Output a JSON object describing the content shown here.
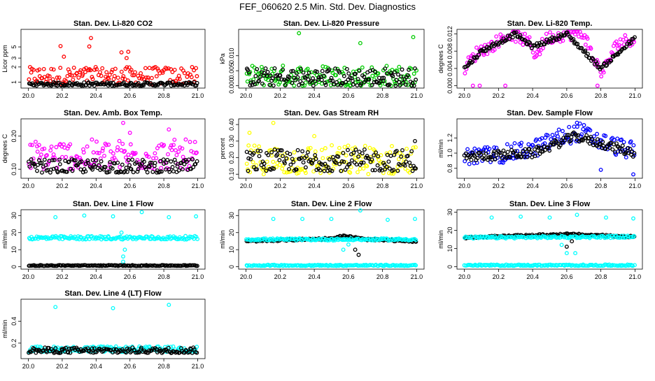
{
  "figure": {
    "title": "FEF_060620  2.5 Min. Std. Dev. Diagnostics"
  },
  "colors": {
    "black": "#000000",
    "red": "#ff0000",
    "green": "#00cc00",
    "magenta": "#ff00ff",
    "yellow": "#ffff00",
    "blue": "#0000ff",
    "cyan": "#00ffff"
  },
  "chart_data": [
    {
      "type": "scatter",
      "title": "Stan. Dev. Li-820 CO2",
      "ylabel": "Licor ppm",
      "xlim": [
        20.0,
        21.0
      ],
      "ylim": [
        0.85,
        10.0
      ],
      "log_y": true,
      "xticks": [
        "20.0",
        "20.2",
        "20.4",
        "20.6",
        "20.8",
        "21.0"
      ],
      "yticks": [
        "1",
        "2",
        "3",
        "5"
      ],
      "series": [
        {
          "color": "red",
          "band": [
            0.9,
            2.0
          ],
          "spikes": [
            [
              20.19,
              5.2
            ],
            [
              20.37,
              7.5
            ],
            [
              20.36,
              5.1
            ],
            [
              20.55,
              3.9
            ],
            [
              20.59,
              4.0
            ],
            [
              20.58,
              3.0
            ],
            [
              20.21,
              3.2
            ]
          ]
        },
        {
          "color": "black",
          "band": [
            0.85,
            1.0
          ],
          "spikes": []
        }
      ]
    },
    {
      "type": "scatter",
      "title": "Stan. Dev. Li-820 Pressure",
      "ylabel": "kPa",
      "xlim": [
        20.0,
        21.0
      ],
      "ylim": [
        0.0,
        0.018
      ],
      "xticks": [
        "20.0",
        "20.2",
        "20.4",
        "20.6",
        "20.8",
        "21.0"
      ],
      "yticks": [
        "0.000",
        "0.005",
        "0.010"
      ],
      "series": [
        {
          "color": "green",
          "band": [
            0.0,
            0.007
          ],
          "spikes": [
            [
              20.31,
              0.0175
            ],
            [
              20.67,
              0.0142
            ],
            [
              20.98,
              0.0162
            ]
          ]
        },
        {
          "color": "black",
          "band": [
            0.0,
            0.006
          ],
          "spikes": []
        }
      ]
    },
    {
      "type": "scatter",
      "title": "Stan. Dev. Li-820 Temp.",
      "ylabel": "degrees C",
      "xlim": [
        20.0,
        21.0
      ],
      "ylim": [
        0.0,
        0.0125
      ],
      "xticks": [
        "20.0",
        "20.2",
        "20.4",
        "20.6",
        "20.8",
        "21.0"
      ],
      "yticks": [
        "0.000",
        "0.004",
        "0.008",
        "0.012"
      ],
      "series": [
        {
          "color": "magenta",
          "curve": [
            [
              20.0,
              0.004
            ],
            [
              20.08,
              0.008
            ],
            [
              20.15,
              0.009
            ],
            [
              20.22,
              0.011
            ],
            [
              20.28,
              0.012
            ],
            [
              20.38,
              0.01
            ],
            [
              20.42,
              0.007
            ],
            [
              20.48,
              0.011
            ],
            [
              20.6,
              0.012
            ],
            [
              20.7,
              0.012
            ],
            [
              20.76,
              0.006
            ],
            [
              20.81,
              0.003
            ],
            [
              20.86,
              0.007
            ],
            [
              20.9,
              0.01
            ],
            [
              21.0,
              0.011
            ]
          ],
          "spread": 0.0015,
          "spikes": [
            [
              20.05,
              0.0
            ],
            [
              20.09,
              0.0
            ],
            [
              20.78,
              0.0
            ],
            [
              20.24,
              0.0
            ]
          ]
        },
        {
          "color": "black",
          "curve": [
            [
              20.0,
              0.004
            ],
            [
              20.1,
              0.008
            ],
            [
              20.3,
              0.012
            ],
            [
              20.4,
              0.009
            ],
            [
              20.6,
              0.012
            ],
            [
              20.8,
              0.004
            ],
            [
              21.0,
              0.011
            ]
          ],
          "spread": 0.0005,
          "spikes": []
        }
      ]
    },
    {
      "type": "scatter",
      "title": "Stan. Dev. Amb. Box Temp.",
      "ylabel": "degrees C",
      "xlim": [
        20.0,
        21.0
      ],
      "ylim": [
        0.08,
        0.245
      ],
      "xticks": [
        "20.0",
        "20.2",
        "20.4",
        "20.6",
        "20.8",
        "21.0"
      ],
      "yticks": [
        "0.10",
        "0.20"
      ],
      "series": [
        {
          "color": "magenta",
          "band": [
            0.1,
            0.19
          ],
          "spikes": [
            [
              20.56,
              0.24
            ],
            [
              20.83,
              0.22
            ],
            [
              20.6,
              0.21
            ]
          ]
        },
        {
          "color": "black",
          "band": [
            0.09,
            0.13
          ],
          "spikes": []
        }
      ]
    },
    {
      "type": "scatter",
      "title": "Stan. Dev. Gas Stream RH",
      "ylabel": "percent",
      "xlim": [
        20.0,
        21.0
      ],
      "ylim": [
        0.09,
        0.42
      ],
      "xticks": [
        "20.0",
        "20.2",
        "20.4",
        "20.6",
        "20.8",
        "21.0"
      ],
      "yticks": [
        "0.10",
        "0.20",
        "0.30",
        "0.40"
      ],
      "series": [
        {
          "color": "yellow",
          "band": [
            0.1,
            0.28
          ],
          "spikes": [
            [
              20.16,
              0.41
            ],
            [
              20.02,
              0.35
            ],
            [
              20.4,
              0.33
            ]
          ]
        },
        {
          "color": "black",
          "band": [
            0.12,
            0.25
          ],
          "spikes": [
            [
              20.99,
              0.3
            ]
          ]
        }
      ]
    },
    {
      "type": "scatter",
      "title": "Stan. Dev. Sample Flow",
      "ylabel": "ml/min",
      "xlim": [
        20.0,
        21.0
      ],
      "ylim": [
        0.7,
        1.42
      ],
      "xticks": [
        "20.0",
        "20.2",
        "20.4",
        "20.6",
        "20.8",
        "21.0"
      ],
      "yticks": [
        "0.6",
        "0.8",
        "1.0",
        "1.2"
      ],
      "series": [
        {
          "color": "blue",
          "curve": [
            [
              20.0,
              0.95
            ],
            [
              20.2,
              0.98
            ],
            [
              20.4,
              1.05
            ],
            [
              20.55,
              1.2
            ],
            [
              20.68,
              1.28
            ],
            [
              20.8,
              1.15
            ],
            [
              21.0,
              1.02
            ]
          ],
          "spread": 0.12,
          "spikes": [
            [
              20.66,
              1.4
            ],
            [
              20.99,
              0.72
            ],
            [
              20.8,
              0.78
            ]
          ]
        },
        {
          "color": "black",
          "curve": [
            [
              20.0,
              0.95
            ],
            [
              20.4,
              1.0
            ],
            [
              20.65,
              1.22
            ],
            [
              21.0,
              1.0
            ]
          ],
          "spread": 0.06,
          "spikes": []
        }
      ]
    },
    {
      "type": "scatter",
      "title": "Stan. Dev. Line 1 Flow",
      "ylabel": "ml/min",
      "xlim": [
        20.0,
        21.0
      ],
      "ylim": [
        0.0,
        32.0
      ],
      "xticks": [
        "20.0",
        "20.2",
        "20.4",
        "20.6",
        "20.8",
        "21.0"
      ],
      "yticks": [
        "0",
        "10",
        "20",
        "30"
      ],
      "series": [
        {
          "color": "cyan",
          "band": [
            16.0,
            18.0
          ],
          "spikes": [
            [
              20.16,
              29.0
            ],
            [
              20.33,
              30.0
            ],
            [
              20.5,
              29.5
            ],
            [
              20.67,
              32.0
            ],
            [
              20.83,
              29.0
            ],
            [
              20.99,
              29.5
            ],
            [
              20.56,
              3.0
            ],
            [
              20.56,
              6.0
            ],
            [
              20.57,
              10.0
            ],
            [
              20.55,
              20.0
            ]
          ]
        },
        {
          "color": "black",
          "band": [
            0.5,
            1.0
          ],
          "spikes": []
        }
      ]
    },
    {
      "type": "scatter",
      "title": "Stan. Dev. Line 2 Flow",
      "ylabel": "ml/min",
      "xlim": [
        20.0,
        21.0
      ],
      "ylim": [
        0.0,
        32.0
      ],
      "xticks": [
        "20.0",
        "20.2",
        "20.4",
        "20.6",
        "20.8",
        "21.0"
      ],
      "yticks": [
        "0",
        "10",
        "20",
        "30"
      ],
      "series": [
        {
          "color": "cyan",
          "band": [
            0.5,
            1.2
          ],
          "spikes": [
            [
              20.16,
              28.0
            ],
            [
              20.33,
              28.0
            ],
            [
              20.5,
              28.0
            ],
            [
              20.67,
              33.0
            ],
            [
              20.83,
              27.5
            ],
            [
              20.99,
              28.0
            ],
            [
              20.57,
              10.0
            ],
            [
              20.6,
              13.0
            ]
          ]
        },
        {
          "color": "black",
          "curve": [
            [
              20.0,
              15.0
            ],
            [
              20.5,
              16.5
            ],
            [
              20.58,
              18.0
            ],
            [
              20.7,
              16.0
            ],
            [
              21.0,
              15.0
            ]
          ],
          "spread": 0.5,
          "spikes": [
            [
              20.64,
              10.0
            ],
            [
              20.66,
              7.0
            ],
            [
              20.55,
              18.0
            ]
          ]
        },
        {
          "color": "cyan",
          "curve": [
            [
              20.0,
              16.0
            ],
            [
              21.0,
              16.0
            ]
          ],
          "spread": 0.6,
          "spikes": []
        }
      ]
    },
    {
      "type": "scatter",
      "title": "Stan. Dev. Line 3 Flow",
      "ylabel": "ml/min",
      "xlim": [
        20.0,
        21.0
      ],
      "ylim": [
        0.0,
        30.0
      ],
      "xticks": [
        "20.0",
        "20.2",
        "20.4",
        "20.6",
        "20.8",
        "21.0"
      ],
      "yticks": [
        "0",
        "10",
        "20",
        "30"
      ],
      "series": [
        {
          "color": "cyan",
          "band": [
            0.5,
            1.2
          ],
          "spikes": [
            [
              20.16,
              27.0
            ],
            [
              20.33,
              27.5
            ],
            [
              20.5,
              27.0
            ],
            [
              20.66,
              28.5
            ],
            [
              20.83,
              27.0
            ],
            [
              20.99,
              26.5
            ],
            [
              20.57,
              12.0
            ],
            [
              20.6,
              7.5
            ],
            [
              20.65,
              7.5
            ]
          ]
        },
        {
          "color": "black",
          "curve": [
            [
              20.0,
              16.0
            ],
            [
              20.5,
              17.5
            ],
            [
              20.6,
              17.8
            ],
            [
              21.0,
              16.5
            ]
          ],
          "spread": 0.5,
          "spikes": [
            [
              20.6,
              11.0
            ],
            [
              20.63,
              14.0
            ]
          ]
        },
        {
          "color": "cyan",
          "curve": [
            [
              20.0,
              16.0
            ],
            [
              21.0,
              16.5
            ]
          ],
          "spread": 0.6,
          "spikes": []
        }
      ]
    },
    {
      "type": "scatter",
      "title": "Stan. Dev. Line 4 (LT) Flow",
      "ylabel": "ml/min",
      "xlim": [
        20.0,
        21.0
      ],
      "ylim": [
        0.08,
        0.58
      ],
      "xticks": [
        "20.0",
        "20.2",
        "20.4",
        "20.6",
        "20.8",
        "21.0"
      ],
      "yticks": [
        "0.2",
        "0.4"
      ],
      "series": [
        {
          "color": "cyan",
          "band": [
            0.12,
            0.17
          ],
          "spikes": [
            [
              20.16,
              0.53
            ],
            [
              20.5,
              0.52
            ],
            [
              20.83,
              0.55
            ]
          ]
        },
        {
          "color": "black",
          "band": [
            0.11,
            0.16
          ],
          "spikes": []
        }
      ]
    }
  ]
}
